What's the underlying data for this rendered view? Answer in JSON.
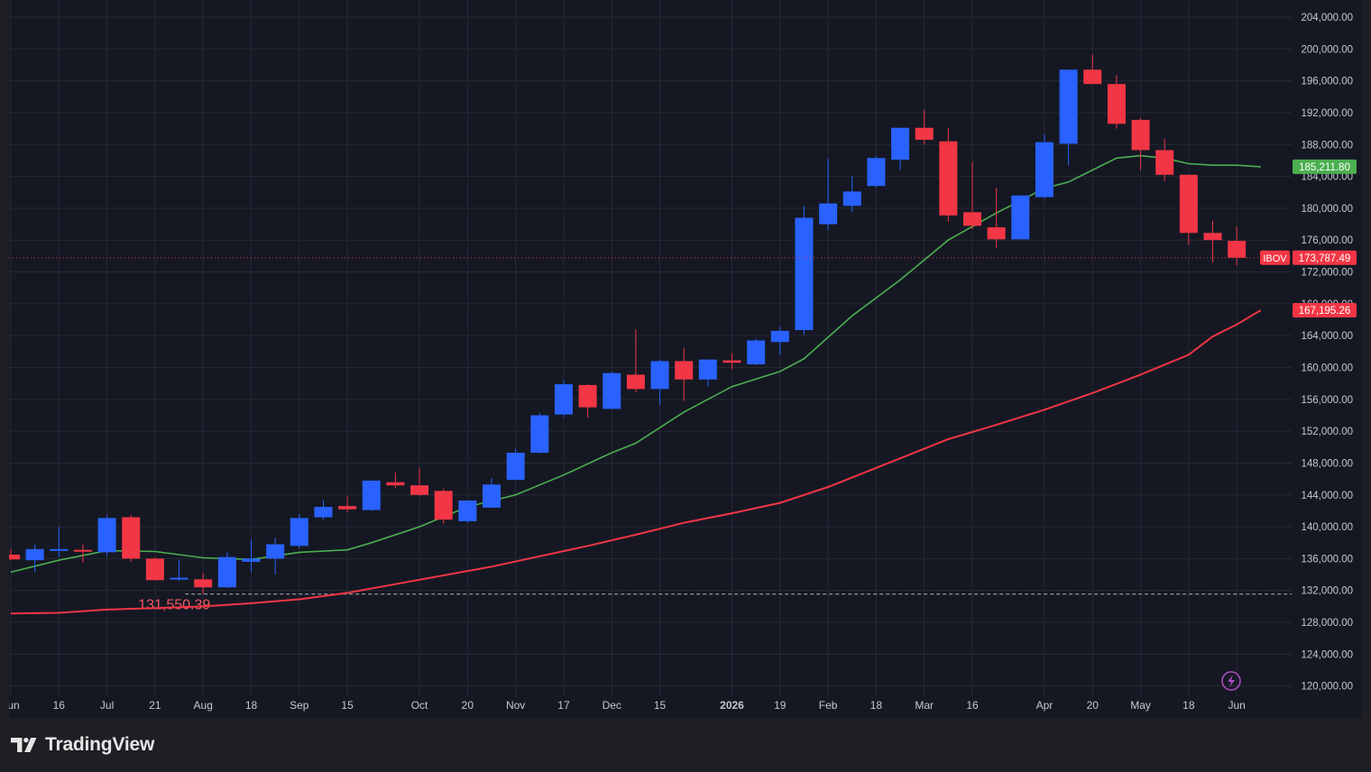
{
  "chart_data": {
    "type": "candlestick",
    "symbol": "IBOV",
    "timeframe": "weekly",
    "ylim": [
      118000,
      206000
    ],
    "y_ticks": [
      120000,
      124000,
      128000,
      132000,
      136000,
      140000,
      144000,
      148000,
      152000,
      156000,
      160000,
      164000,
      168000,
      172000,
      176000,
      180000,
      184000,
      188000,
      192000,
      196000,
      200000,
      204000
    ],
    "y_tick_labels": [
      "120,000.00",
      "124,000.00",
      "128,000.00",
      "132,000.00",
      "136,000.00",
      "140,000.00",
      "144,000.00",
      "148,000.00",
      "152,000.00",
      "156,000.00",
      "160,000.00",
      "164,000.00",
      "168,000.00",
      "172,000.00",
      "176,000.00",
      "180,000.00",
      "184,000.00",
      "188,000.00",
      "192,000.00",
      "196,000.00",
      "200,000.00",
      "204,000.00"
    ],
    "x_labels": [
      {
        "week": 0,
        "text": "Jun",
        "bold": false
      },
      {
        "week": 2,
        "text": "16",
        "bold": false
      },
      {
        "week": 4,
        "text": "Jul",
        "bold": false
      },
      {
        "week": 6,
        "text": "21",
        "bold": false
      },
      {
        "week": 8,
        "text": "Aug",
        "bold": false
      },
      {
        "week": 10,
        "text": "18",
        "bold": false
      },
      {
        "week": 12,
        "text": "Sep",
        "bold": false
      },
      {
        "week": 14,
        "text": "15",
        "bold": false
      },
      {
        "week": 17,
        "text": "Oct",
        "bold": false
      },
      {
        "week": 19,
        "text": "20",
        "bold": false
      },
      {
        "week": 21,
        "text": "Nov",
        "bold": false
      },
      {
        "week": 23,
        "text": "17",
        "bold": false
      },
      {
        "week": 25,
        "text": "Dec",
        "bold": false
      },
      {
        "week": 27,
        "text": "15",
        "bold": false
      },
      {
        "week": 30,
        "text": "2026",
        "bold": true
      },
      {
        "week": 32,
        "text": "19",
        "bold": false
      },
      {
        "week": 34,
        "text": "Feb",
        "bold": false
      },
      {
        "week": 36,
        "text": "18",
        "bold": false
      },
      {
        "week": 38,
        "text": "Mar",
        "bold": false
      },
      {
        "week": 40,
        "text": "16",
        "bold": false
      },
      {
        "week": 43,
        "text": "Apr",
        "bold": false
      },
      {
        "week": 45,
        "text": "20",
        "bold": false
      },
      {
        "week": 47,
        "text": "May",
        "bold": false
      },
      {
        "week": 49,
        "text": "18",
        "bold": false
      },
      {
        "week": 51,
        "text": "Jun",
        "bold": false
      }
    ],
    "candles": [
      {
        "o": 136500,
        "h": 137200,
        "l": 135800,
        "c": 135900
      },
      {
        "o": 135800,
        "h": 137800,
        "l": 134300,
        "c": 137200
      },
      {
        "o": 137000,
        "h": 140000,
        "l": 136200,
        "c": 137200
      },
      {
        "o": 137100,
        "h": 137800,
        "l": 135500,
        "c": 137000
      },
      {
        "o": 136800,
        "h": 141500,
        "l": 136300,
        "c": 141100
      },
      {
        "o": 141200,
        "h": 141500,
        "l": 135600,
        "c": 136000
      },
      {
        "o": 136000,
        "h": 136200,
        "l": 133400,
        "c": 133300
      },
      {
        "o": 133400,
        "h": 135800,
        "l": 133200,
        "c": 133600
      },
      {
        "o": 133400,
        "h": 134200,
        "l": 131550,
        "c": 132400
      },
      {
        "o": 132400,
        "h": 136800,
        "l": 132300,
        "c": 136200
      },
      {
        "o": 135600,
        "h": 138400,
        "l": 134300,
        "c": 136000
      },
      {
        "o": 136000,
        "h": 138600,
        "l": 134000,
        "c": 137800
      },
      {
        "o": 137600,
        "h": 141600,
        "l": 137300,
        "c": 141100
      },
      {
        "o": 141200,
        "h": 143300,
        "l": 140900,
        "c": 142500
      },
      {
        "o": 142600,
        "h": 143800,
        "l": 141800,
        "c": 142200
      },
      {
        "o": 142100,
        "h": 145800,
        "l": 142000,
        "c": 145800
      },
      {
        "o": 145600,
        "h": 146800,
        "l": 144900,
        "c": 145200
      },
      {
        "o": 145200,
        "h": 147400,
        "l": 143800,
        "c": 144000
      },
      {
        "o": 144500,
        "h": 144800,
        "l": 140400,
        "c": 140900
      },
      {
        "o": 140700,
        "h": 143300,
        "l": 140500,
        "c": 143300
      },
      {
        "o": 142400,
        "h": 146100,
        "l": 142400,
        "c": 145300
      },
      {
        "o": 145900,
        "h": 149800,
        "l": 145800,
        "c": 149300
      },
      {
        "o": 149300,
        "h": 154300,
        "l": 149200,
        "c": 154000
      },
      {
        "o": 154100,
        "h": 158400,
        "l": 153800,
        "c": 157900
      },
      {
        "o": 157800,
        "h": 157900,
        "l": 153700,
        "c": 155000
      },
      {
        "o": 154800,
        "h": 159500,
        "l": 154800,
        "c": 159300
      },
      {
        "o": 159100,
        "h": 164800,
        "l": 156900,
        "c": 157300
      },
      {
        "o": 157300,
        "h": 161000,
        "l": 155300,
        "c": 160800
      },
      {
        "o": 160800,
        "h": 162500,
        "l": 155800,
        "c": 158500
      },
      {
        "o": 158500,
        "h": 161000,
        "l": 157600,
        "c": 161000
      },
      {
        "o": 160900,
        "h": 161800,
        "l": 159800,
        "c": 160600
      },
      {
        "o": 160400,
        "h": 163600,
        "l": 160300,
        "c": 163400
      },
      {
        "o": 163200,
        "h": 165100,
        "l": 161600,
        "c": 164600
      },
      {
        "o": 164700,
        "h": 180300,
        "l": 164100,
        "c": 178800
      },
      {
        "o": 178000,
        "h": 186200,
        "l": 177300,
        "c": 180600
      },
      {
        "o": 180300,
        "h": 184000,
        "l": 179500,
        "c": 182100
      },
      {
        "o": 182800,
        "h": 186600,
        "l": 182600,
        "c": 186300
      },
      {
        "o": 186100,
        "h": 190100,
        "l": 184800,
        "c": 190100
      },
      {
        "o": 190100,
        "h": 192400,
        "l": 188000,
        "c": 188600
      },
      {
        "o": 188400,
        "h": 190100,
        "l": 178300,
        "c": 179100
      },
      {
        "o": 179500,
        "h": 185800,
        "l": 177400,
        "c": 177800
      },
      {
        "o": 177600,
        "h": 182600,
        "l": 175000,
        "c": 176100
      },
      {
        "o": 176100,
        "h": 181600,
        "l": 176100,
        "c": 181600
      },
      {
        "o": 181400,
        "h": 189300,
        "l": 181200,
        "c": 188300
      },
      {
        "o": 188100,
        "h": 197400,
        "l": 185400,
        "c": 197400
      },
      {
        "o": 197400,
        "h": 199300,
        "l": 195600,
        "c": 195600
      },
      {
        "o": 195600,
        "h": 196700,
        "l": 190000,
        "c": 190600
      },
      {
        "o": 191100,
        "h": 191300,
        "l": 184800,
        "c": 187300
      },
      {
        "o": 187300,
        "h": 188700,
        "l": 183400,
        "c": 184200
      },
      {
        "o": 184200,
        "h": 184200,
        "l": 175400,
        "c": 176900
      },
      {
        "o": 176900,
        "h": 178400,
        "l": 173200,
        "c": 176000
      },
      {
        "o": 175900,
        "h": 177700,
        "l": 172800,
        "c": 173787
      }
    ],
    "ma_fast": {
      "color": "#4caf50",
      "label": "185,211.80",
      "points": [
        [
          0,
          134300
        ],
        [
          2,
          135800
        ],
        [
          4,
          137000
        ],
        [
          6,
          136900
        ],
        [
          8,
          136100
        ],
        [
          10,
          135900
        ],
        [
          12,
          136800
        ],
        [
          14,
          137100
        ],
        [
          15,
          138000
        ],
        [
          17,
          140000
        ],
        [
          19,
          142500
        ],
        [
          21,
          144000
        ],
        [
          23,
          146500
        ],
        [
          25,
          149300
        ],
        [
          26,
          150500
        ],
        [
          28,
          154400
        ],
        [
          30,
          157600
        ],
        [
          32,
          159500
        ],
        [
          33,
          161100
        ],
        [
          35,
          166500
        ],
        [
          37,
          171000
        ],
        [
          39,
          176000
        ],
        [
          41,
          179400
        ],
        [
          43,
          182500
        ],
        [
          44,
          183300
        ],
        [
          45,
          184800
        ],
        [
          46,
          186300
        ],
        [
          47,
          186600
        ],
        [
          48,
          186300
        ],
        [
          49,
          185600
        ],
        [
          50,
          185400
        ],
        [
          51,
          185400
        ],
        [
          52,
          185212
        ]
      ]
    },
    "ma_slow": {
      "color": "#f23645",
      "label": "167,195.26",
      "points": [
        [
          0,
          129100
        ],
        [
          2,
          129200
        ],
        [
          4,
          129600
        ],
        [
          6,
          129800
        ],
        [
          8,
          130000
        ],
        [
          10,
          130400
        ],
        [
          12,
          130900
        ],
        [
          14,
          131700
        ],
        [
          16,
          132800
        ],
        [
          18,
          133900
        ],
        [
          20,
          135000
        ],
        [
          22,
          136300
        ],
        [
          24,
          137600
        ],
        [
          26,
          139000
        ],
        [
          28,
          140500
        ],
        [
          30,
          141700
        ],
        [
          32,
          143000
        ],
        [
          34,
          145000
        ],
        [
          36,
          147400
        ],
        [
          38,
          149800
        ],
        [
          39,
          151000
        ],
        [
          41,
          152800
        ],
        [
          43,
          154700
        ],
        [
          45,
          156800
        ],
        [
          47,
          159100
        ],
        [
          49,
          161600
        ],
        [
          50,
          163900
        ],
        [
          51,
          165400
        ],
        [
          52,
          167195
        ]
      ]
    },
    "last_price": {
      "value": 173787.49,
      "symbol": "IBOV",
      "label": "173,787.49"
    },
    "low_marker": {
      "value": 131550.39,
      "label": "131,550.39",
      "week": 8
    },
    "colors": {
      "up": "#2962ff",
      "down": "#f23645",
      "grid": "#262935",
      "axis_text": "#c6c8cf",
      "background": "#151823"
    }
  },
  "branding": {
    "name": "TradingView"
  }
}
